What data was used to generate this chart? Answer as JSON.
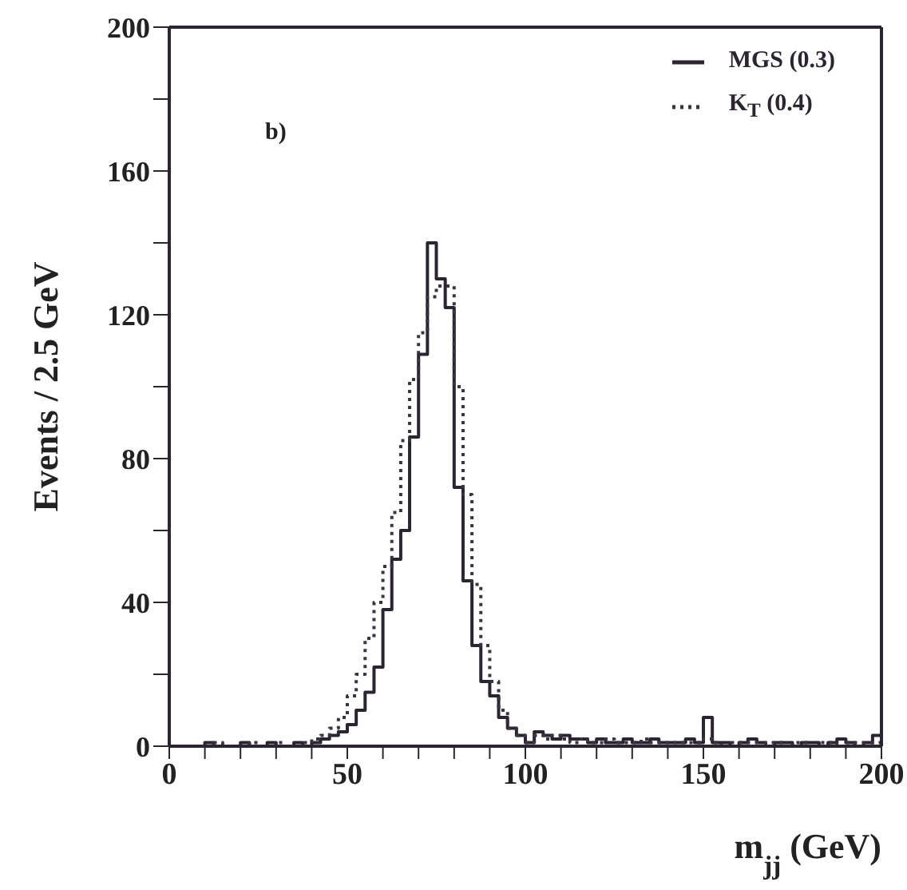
{
  "chart_data": {
    "type": "histogram",
    "xlabel": "m$_{jj}$ (GeV)",
    "ylabel": "Events / 2.5 GeV",
    "annotations": [
      "b)"
    ],
    "bins": [
      0,
      2.5,
      5,
      7.5,
      10,
      12.5,
      15,
      17.5,
      20,
      22.5,
      25,
      27.5,
      30,
      32.5,
      35,
      37.5,
      40,
      42.5,
      45,
      47.5,
      50,
      52.5,
      55,
      57.5,
      60,
      62.5,
      65,
      67.5,
      70,
      72.5,
      75,
      77.5,
      80,
      82.5,
      85,
      87.5,
      90,
      92.5,
      95,
      97.5,
      100,
      102.5,
      105,
      107.5,
      110,
      112.5,
      115,
      117.5,
      120,
      122.5,
      125,
      127.5,
      130,
      132.5,
      135,
      137.5,
      140,
      142.5,
      145,
      147.5,
      150,
      152.5,
      155,
      157.5,
      160,
      162.5,
      165,
      167.5,
      170,
      172.5,
      175,
      177.5,
      180,
      182.5,
      185,
      187.5,
      190,
      192.5,
      195,
      197.5,
      200
    ],
    "series": [
      {
        "name": "MGS (0.3)",
        "color": "#2a2530",
        "line_style": "solid",
        "values": [
          0,
          0,
          0,
          0,
          1,
          0,
          0,
          0,
          1,
          0,
          0,
          1,
          0,
          0,
          1,
          0,
          1,
          2,
          3,
          4,
          6,
          10,
          15,
          22,
          38,
          52,
          60,
          86,
          109,
          140,
          130,
          122,
          72,
          46,
          28,
          18,
          14,
          8,
          5,
          3,
          1,
          4,
          3,
          2,
          3,
          2,
          2,
          1,
          2,
          1,
          1,
          2,
          1,
          1,
          2,
          1,
          1,
          1,
          2,
          1,
          8,
          1,
          1,
          0,
          1,
          2,
          1,
          0,
          1,
          1,
          0,
          1,
          1,
          0,
          1,
          2,
          1,
          0,
          1,
          3
        ]
      },
      {
        "name": "K$_{T}$  (0.4)",
        "color": "#3b3542",
        "line_style": "dotted",
        "values": [
          0,
          0,
          0,
          0,
          0,
          1,
          0,
          0,
          0,
          1,
          0,
          0,
          1,
          0,
          0,
          1,
          2,
          3,
          5,
          8,
          14,
          20,
          30,
          40,
          50,
          65,
          85,
          102,
          115,
          125,
          128,
          128,
          100,
          70,
          45,
          28,
          18,
          10,
          5,
          3,
          1,
          3,
          2,
          3,
          2,
          1,
          2,
          1,
          1,
          2,
          1,
          1,
          1,
          2,
          1,
          1,
          1,
          1,
          1,
          1,
          2,
          1,
          0,
          1,
          1,
          1,
          0,
          1,
          1,
          0,
          1,
          1,
          0,
          1,
          1,
          0,
          1,
          1,
          0,
          1
        ]
      }
    ],
    "xlim": [
      0,
      200
    ],
    "ylim": [
      0,
      200
    ],
    "xticks": [
      0,
      {
        "value": 10,
        "label": null
      },
      {
        "value": 20,
        "label": null
      },
      {
        "value": 30,
        "label": null
      },
      {
        "value": 40,
        "label": null
      },
      50,
      {
        "value": 60,
        "label": null
      },
      {
        "value": 70,
        "label": null
      },
      {
        "value": 80,
        "label": null
      },
      {
        "value": 90,
        "label": null
      },
      100,
      {
        "value": 110,
        "label": null
      },
      {
        "value": 120,
        "label": null
      },
      {
        "value": 130,
        "label": null
      },
      {
        "value": 140,
        "label": null
      },
      150,
      {
        "value": 160,
        "label": null
      },
      {
        "value": 170,
        "label": null
      },
      {
        "value": 180,
        "label": null
      },
      {
        "value": 190,
        "label": null
      },
      200
    ],
    "yticks": [
      0,
      {
        "value": 20,
        "label": null
      },
      40,
      {
        "value": 60,
        "label": null
      },
      80,
      {
        "value": 100,
        "label": null
      },
      120,
      {
        "value": 140,
        "label": null
      },
      160,
      {
        "value": 180,
        "label": null
      },
      200
    ],
    "legend": "top right"
  }
}
